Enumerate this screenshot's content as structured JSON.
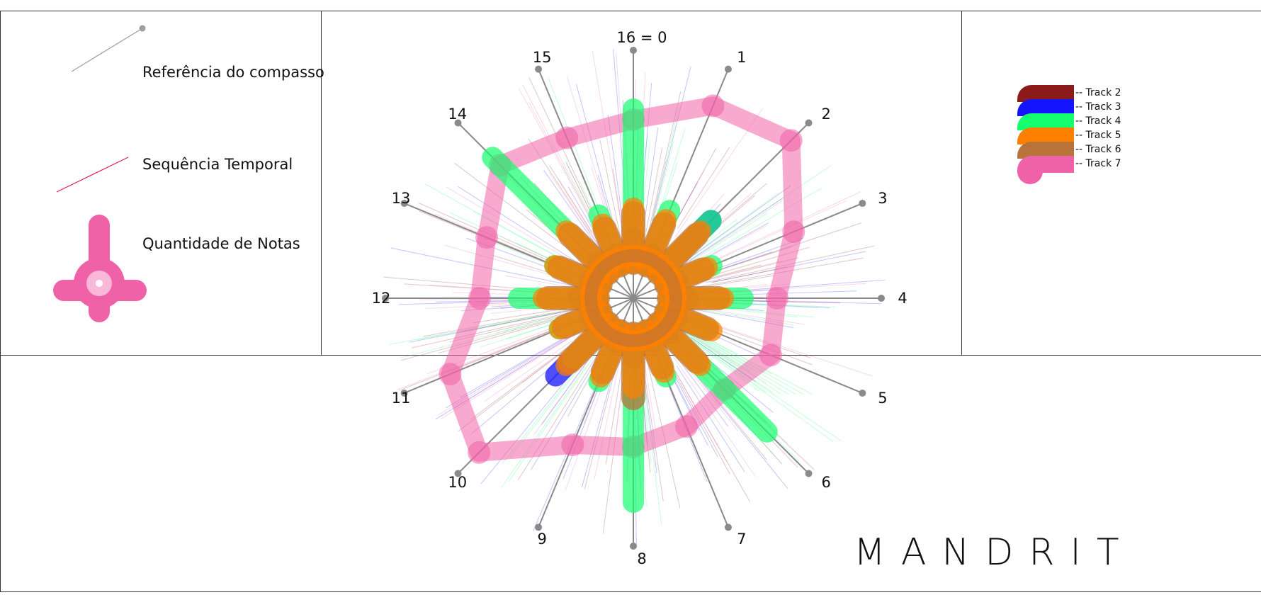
{
  "legend": {
    "reference_label": "Referência do compasso",
    "sequence_label": "Sequência Temporal",
    "notes_label": "Quantidade de Notas",
    "reference_color": "#9e9e9e",
    "sequence_color": "#e0204a",
    "notes_color": "#f062a8"
  },
  "brand": "MANDRIT",
  "chart_data": {
    "type": "radial",
    "subdivisions": 16,
    "tick_labels": [
      "16 = 0",
      "1",
      "2",
      "3",
      "4",
      "5",
      "6",
      "7",
      "8",
      "9",
      "10",
      "11",
      "12",
      "13",
      "14",
      "15"
    ],
    "tracks": [
      {
        "name": "Track 2",
        "color": "#8b1a1a"
      },
      {
        "name": "Track 3",
        "color": "#1414ff"
      },
      {
        "name": "Track 4",
        "color": "#14ff6e"
      },
      {
        "name": "Track 5",
        "color": "#ff8000"
      },
      {
        "name": "Track 6",
        "color": "#b8733a"
      },
      {
        "name": "Track 7",
        "color": "#f062a8"
      }
    ],
    "note_amounts": {
      "Track 4": [
        0.62,
        0.24,
        0.3,
        0.2,
        0.3,
        0.18,
        0.62,
        0.2,
        0.68,
        0.22,
        0.2,
        0.18,
        0.32,
        0.2,
        0.66,
        0.22
      ],
      "Track 5": [
        0.22,
        0.2,
        0.24,
        0.18,
        0.22,
        0.2,
        0.24,
        0.18,
        0.22,
        0.2,
        0.24,
        0.18,
        0.22,
        0.2,
        0.24,
        0.18
      ],
      "Track 6": [
        0.2,
        0.18,
        0.22,
        0.16,
        0.2,
        0.18,
        0.22,
        0.16,
        0.26,
        0.18,
        0.22,
        0.16,
        0.2,
        0.18,
        0.22,
        0.16
      ],
      "Track 3": [
        0.1,
        0.05,
        0.3,
        0.05,
        0.08,
        0.05,
        0.06,
        0.05,
        0.1,
        0.05,
        0.3,
        0.05,
        0.08,
        0.05,
        0.06,
        0.05
      ],
      "Track 7": [
        0.72,
        0.84,
        0.9,
        0.7,
        0.58,
        0.6,
        0.52,
        0.56,
        0.6,
        0.64,
        0.88,
        0.8,
        0.62,
        0.64,
        0.76,
        0.7
      ]
    }
  }
}
